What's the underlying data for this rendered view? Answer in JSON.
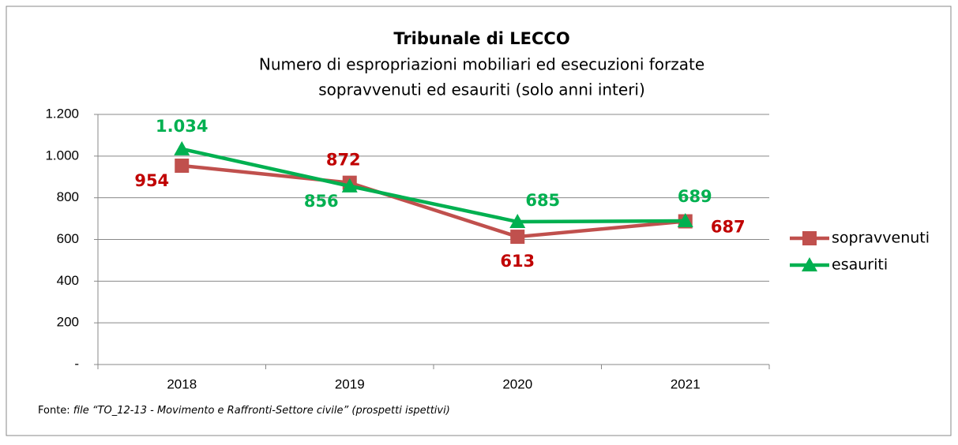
{
  "chart_data": {
    "type": "line",
    "title": "Tribunale di LECCO",
    "subtitle": [
      "Numero di espropriazioni mobiliari ed esecuzioni forzate",
      "sopravvenuti ed esauriti (solo anni interi)"
    ],
    "categories": [
      "2018",
      "2019",
      "2020",
      "2021"
    ],
    "series": [
      {
        "name": "sopravvenuti",
        "color": "#c0504d",
        "label_color": "#c00000",
        "marker": "square",
        "values": [
          954,
          872,
          613,
          687
        ],
        "value_labels": [
          "954",
          "872",
          "613",
          "687"
        ]
      },
      {
        "name": "esauriti",
        "color": "#00b050",
        "label_color": "#00b050",
        "marker": "triangle",
        "values": [
          1034,
          856,
          685,
          689
        ],
        "value_labels": [
          "1.034",
          "856",
          "685",
          "689"
        ]
      }
    ],
    "ylim": [
      0,
      1200
    ],
    "yticks": [
      {
        "value": 0,
        "label": "-"
      },
      200,
      400,
      600,
      {
        "value": 800,
        "label": "800"
      },
      {
        "value": 1000,
        "label": "1.000"
      },
      {
        "value": 1200,
        "label": "1.200"
      }
    ],
    "grid": true,
    "legend": "right",
    "source": {
      "label": "Fonte:",
      "text": "file “TO_12-13 - Movimento e Raffronti-Settore civile” (prospetti ispettivi)"
    }
  }
}
